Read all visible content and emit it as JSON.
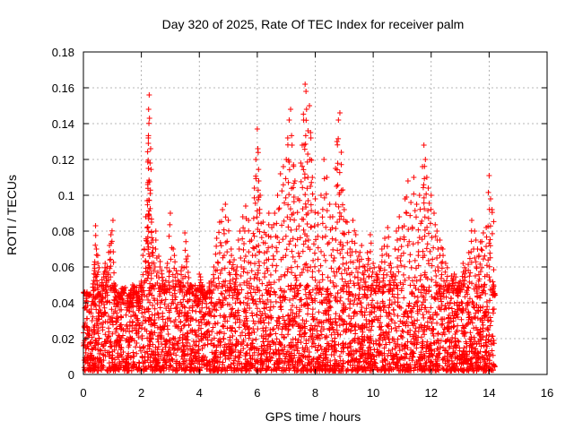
{
  "chart_data": {
    "type": "scatter",
    "title": "Day 320 of 2025, Rate Of TEC Index for receiver palm",
    "xlabel": "GPS time / hours",
    "ylabel": "ROTI / TECUs",
    "xlim": [
      0,
      16
    ],
    "ylim": [
      0,
      0.18
    ],
    "xticks": [
      0,
      2,
      4,
      6,
      8,
      10,
      12,
      14,
      16
    ],
    "xtick_labels": [
      "0",
      "2",
      "4",
      "6",
      "8",
      "10",
      "12",
      "14",
      "16"
    ],
    "yticks": [
      0,
      0.02,
      0.04,
      0.06,
      0.08,
      0.1,
      0.12,
      0.14,
      0.16,
      0.18
    ],
    "ytick_labels": [
      "0",
      "0.02",
      "0.04",
      "0.06",
      "0.08",
      "0.1",
      "0.12",
      "0.14",
      "0.16",
      "0.18"
    ],
    "grid": true,
    "marker": "+",
    "color": "#ff0000",
    "series": [
      {
        "name": "ROTI",
        "points": [
          [
            0.05,
            0.046
          ],
          [
            0.12,
            0.036
          ],
          [
            0.2,
            0.044
          ],
          [
            0.3,
            0.03
          ],
          [
            0.38,
            0.058
          ],
          [
            0.42,
            0.083
          ],
          [
            0.45,
            0.07
          ],
          [
            0.5,
            0.062
          ],
          [
            0.55,
            0.045
          ],
          [
            0.62,
            0.04
          ],
          [
            0.7,
            0.056
          ],
          [
            0.75,
            0.062
          ],
          [
            0.82,
            0.06
          ],
          [
            0.9,
            0.072
          ],
          [
            0.95,
            0.078
          ],
          [
            1.02,
            0.086
          ],
          [
            1.1,
            0.05
          ],
          [
            1.2,
            0.038
          ],
          [
            1.3,
            0.042
          ],
          [
            1.4,
            0.048
          ],
          [
            1.5,
            0.036
          ],
          [
            1.6,
            0.044
          ],
          [
            1.7,
            0.05
          ],
          [
            1.8,
            0.046
          ],
          [
            1.9,
            0.04
          ],
          [
            2.0,
            0.052
          ],
          [
            2.1,
            0.07
          ],
          [
            2.15,
            0.088
          ],
          [
            2.2,
            0.097
          ],
          [
            2.22,
            0.106
          ],
          [
            2.24,
            0.132
          ],
          [
            2.25,
            0.148
          ],
          [
            2.27,
            0.156
          ],
          [
            2.28,
            0.143
          ],
          [
            2.3,
            0.118
          ],
          [
            2.32,
            0.126
          ],
          [
            2.35,
            0.085
          ],
          [
            2.4,
            0.075
          ],
          [
            2.5,
            0.08
          ],
          [
            2.6,
            0.066
          ],
          [
            2.7,
            0.058
          ],
          [
            2.8,
            0.05
          ],
          [
            2.9,
            0.062
          ],
          [
            3.0,
            0.09
          ],
          [
            3.1,
            0.07
          ],
          [
            3.2,
            0.058
          ],
          [
            3.3,
            0.052
          ],
          [
            3.4,
            0.06
          ],
          [
            3.5,
            0.079
          ],
          [
            3.6,
            0.066
          ],
          [
            3.7,
            0.05
          ],
          [
            3.8,
            0.045
          ],
          [
            3.9,
            0.04
          ],
          [
            4.0,
            0.056
          ],
          [
            4.1,
            0.05
          ],
          [
            4.2,
            0.042
          ],
          [
            4.3,
            0.046
          ],
          [
            4.4,
            0.052
          ],
          [
            4.5,
            0.06
          ],
          [
            4.6,
            0.076
          ],
          [
            4.7,
            0.085
          ],
          [
            4.8,
            0.092
          ],
          [
            4.9,
            0.095
          ],
          [
            5.0,
            0.086
          ],
          [
            5.1,
            0.07
          ],
          [
            5.2,
            0.064
          ],
          [
            5.3,
            0.06
          ],
          [
            5.4,
            0.08
          ],
          [
            5.5,
            0.088
          ],
          [
            5.6,
            0.094
          ],
          [
            5.7,
            0.086
          ],
          [
            5.8,
            0.075
          ],
          [
            5.9,
            0.104
          ],
          [
            5.95,
            0.12
          ],
          [
            6.0,
            0.137
          ],
          [
            6.02,
            0.126
          ],
          [
            6.05,
            0.108
          ],
          [
            6.1,
            0.1
          ],
          [
            6.2,
            0.085
          ],
          [
            6.3,
            0.078
          ],
          [
            6.4,
            0.09
          ],
          [
            6.5,
            0.082
          ],
          [
            6.6,
            0.09
          ],
          [
            6.7,
            0.1
          ],
          [
            6.8,
            0.112
          ],
          [
            6.9,
            0.116
          ],
          [
            7.0,
            0.12
          ],
          [
            7.05,
            0.132
          ],
          [
            7.1,
            0.142
          ],
          [
            7.15,
            0.148
          ],
          [
            7.2,
            0.128
          ],
          [
            7.25,
            0.117
          ],
          [
            7.3,
            0.108
          ],
          [
            7.4,
            0.098
          ],
          [
            7.5,
            0.118
          ],
          [
            7.55,
            0.128
          ],
          [
            7.6,
            0.142
          ],
          [
            7.65,
            0.162
          ],
          [
            7.68,
            0.158
          ],
          [
            7.7,
            0.148
          ],
          [
            7.75,
            0.136
          ],
          [
            7.8,
            0.15
          ],
          [
            7.85,
            0.132
          ],
          [
            7.9,
            0.11
          ],
          [
            8.0,
            0.098
          ],
          [
            8.1,
            0.09
          ],
          [
            8.2,
            0.1
          ],
          [
            8.3,
            0.12
          ],
          [
            8.4,
            0.11
          ],
          [
            8.5,
            0.095
          ],
          [
            8.6,
            0.088
          ],
          [
            8.7,
            0.115
          ],
          [
            8.75,
            0.13
          ],
          [
            8.8,
            0.142
          ],
          [
            8.85,
            0.146
          ],
          [
            8.9,
            0.124
          ],
          [
            8.95,
            0.103
          ],
          [
            9.0,
            0.092
          ],
          [
            9.1,
            0.085
          ],
          [
            9.2,
            0.07
          ],
          [
            9.3,
            0.086
          ],
          [
            9.4,
            0.078
          ],
          [
            9.5,
            0.066
          ],
          [
            9.6,
            0.072
          ],
          [
            9.7,
            0.06
          ],
          [
            9.8,
            0.068
          ],
          [
            9.9,
            0.078
          ],
          [
            10.0,
            0.062
          ],
          [
            10.1,
            0.056
          ],
          [
            10.2,
            0.06
          ],
          [
            10.3,
            0.07
          ],
          [
            10.4,
            0.076
          ],
          [
            10.5,
            0.082
          ],
          [
            10.6,
            0.062
          ],
          [
            10.7,
            0.056
          ],
          [
            10.8,
            0.08
          ],
          [
            10.9,
            0.088
          ],
          [
            11.0,
            0.082
          ],
          [
            11.1,
            0.098
          ],
          [
            11.2,
            0.108
          ],
          [
            11.3,
            0.096
          ],
          [
            11.4,
            0.11
          ],
          [
            11.5,
            0.095
          ],
          [
            11.6,
            0.1
          ],
          [
            11.7,
            0.116
          ],
          [
            11.75,
            0.128
          ],
          [
            11.8,
            0.12
          ],
          [
            11.85,
            0.11
          ],
          [
            11.9,
            0.104
          ],
          [
            12.0,
            0.1
          ],
          [
            12.1,
            0.09
          ],
          [
            12.2,
            0.08
          ],
          [
            12.3,
            0.075
          ],
          [
            12.4,
            0.07
          ],
          [
            12.5,
            0.062
          ],
          [
            12.6,
            0.05
          ],
          [
            12.7,
            0.055
          ],
          [
            12.8,
            0.056
          ],
          [
            12.9,
            0.048
          ],
          [
            13.0,
            0.052
          ],
          [
            13.1,
            0.062
          ],
          [
            13.2,
            0.058
          ],
          [
            13.3,
            0.068
          ],
          [
            13.4,
            0.086
          ],
          [
            13.5,
            0.08
          ],
          [
            13.6,
            0.07
          ],
          [
            13.7,
            0.074
          ],
          [
            13.8,
            0.079
          ],
          [
            13.9,
            0.082
          ],
          [
            14.0,
            0.111
          ],
          [
            14.05,
            0.098
          ],
          [
            14.1,
            0.092
          ],
          [
            14.15,
            0.05
          ],
          [
            14.18,
            0.044
          ]
        ]
      }
    ],
    "dense_band": {
      "x_start": 0.0,
      "x_end": 14.2,
      "y_min": 0.002,
      "y_max": 0.05
    }
  }
}
